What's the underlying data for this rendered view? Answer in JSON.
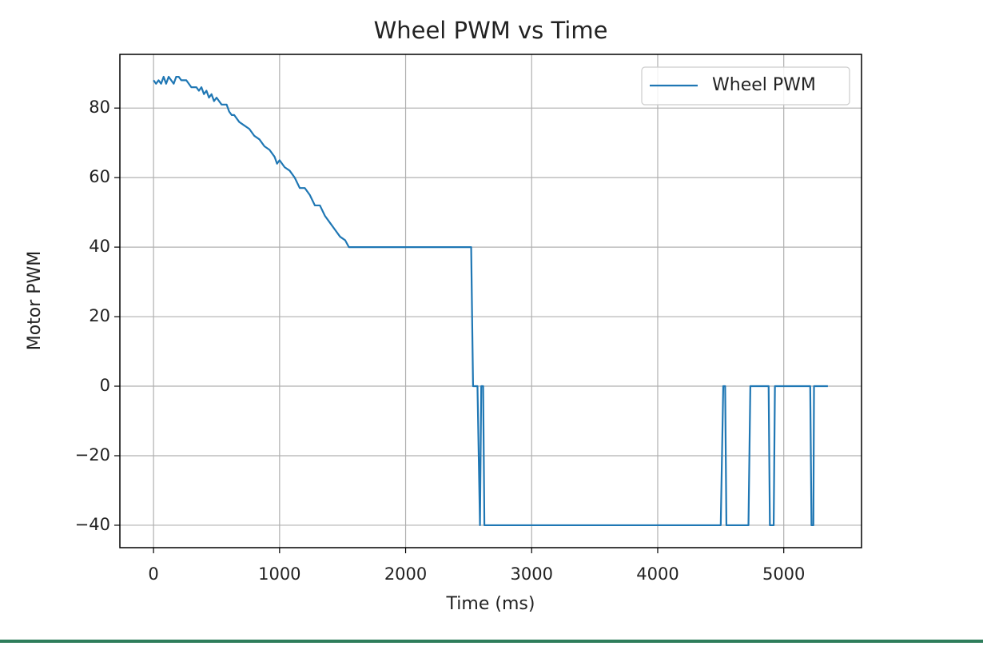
{
  "chart_data": {
    "type": "line",
    "title": "Wheel PWM vs Time",
    "x_label": "Time (ms)",
    "y_label": "Motor PWM",
    "xlim": [
      -267,
      5617
    ],
    "ylim": [
      -46.45,
      95.45
    ],
    "xticks": [
      0,
      1000,
      2000,
      3000,
      4000,
      5000
    ],
    "yticks": [
      {
        "value": -40,
        "label": "−40"
      },
      {
        "value": -20,
        "label": "−20"
      },
      0,
      20,
      40,
      60,
      80
    ],
    "grid": true,
    "legend": "upper right",
    "x": [
      0,
      20,
      40,
      60,
      80,
      100,
      120,
      140,
      160,
      180,
      200,
      220,
      260,
      280,
      300,
      340,
      360,
      380,
      400,
      420,
      440,
      460,
      480,
      500,
      540,
      580,
      600,
      620,
      640,
      680,
      720,
      760,
      800,
      840,
      880,
      920,
      960,
      980,
      1000,
      1040,
      1080,
      1120,
      1160,
      1200,
      1240,
      1280,
      1320,
      1360,
      1400,
      1440,
      1480,
      1520,
      1550,
      2520,
      2535,
      2570,
      2590,
      2600,
      2615,
      2625,
      4500,
      4520,
      4535,
      4545,
      4720,
      4735,
      4880,
      4890,
      4920,
      4930,
      5210,
      5220,
      5235,
      5240,
      5350
    ],
    "series": [
      {
        "name": "Wheel PWM",
        "color": "#1f77b4",
        "values": [
          88,
          87,
          88,
          87,
          89,
          87,
          89,
          88,
          87,
          89,
          89,
          88,
          88,
          87,
          86,
          86,
          85,
          86,
          84,
          85,
          83,
          84,
          82,
          83,
          81,
          81,
          79,
          78,
          78,
          76,
          75,
          74,
          72,
          71,
          69,
          68,
          66,
          64,
          65,
          63,
          62,
          60,
          57,
          57,
          55,
          52,
          52,
          49,
          47,
          45,
          43,
          42,
          40,
          40,
          0,
          0,
          -40,
          0,
          0,
          -40,
          -40,
          0,
          0,
          -40,
          -40,
          0,
          0,
          -40,
          -40,
          0,
          0,
          -40,
          -40,
          0,
          0
        ]
      }
    ]
  }
}
